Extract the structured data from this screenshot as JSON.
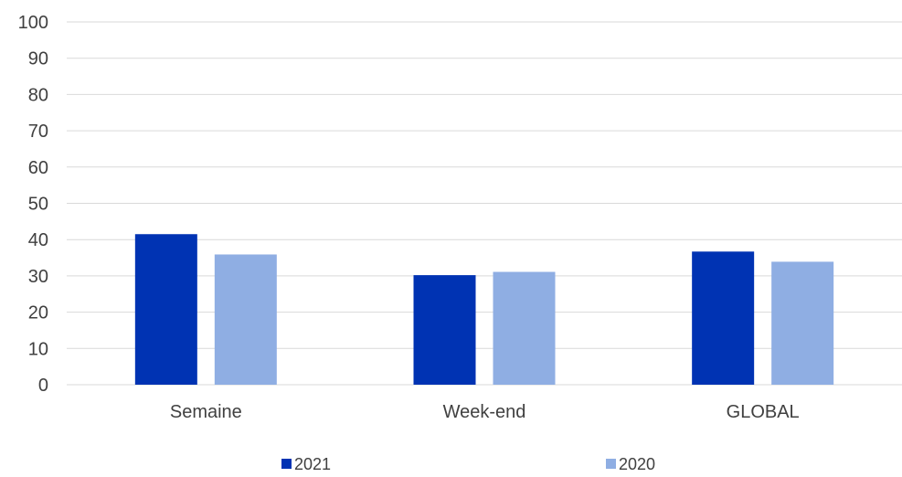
{
  "chart_data": {
    "type": "bar",
    "categories": [
      "Semaine",
      "Week-end",
      "GLOBAL"
    ],
    "series": [
      {
        "name": "2021",
        "values": [
          41.5,
          30.2,
          36.7
        ],
        "color": "#0033b3"
      },
      {
        "name": "2020",
        "values": [
          35.9,
          31.1,
          33.9
        ],
        "color": "#8faee3"
      }
    ],
    "ylim": [
      0,
      100
    ],
    "yticks": [
      0,
      10,
      20,
      30,
      40,
      50,
      60,
      70,
      80,
      90,
      100
    ],
    "grid": true,
    "legend_position": "bottom",
    "title": "",
    "xlabel": "",
    "ylabel": ""
  },
  "colors": {
    "gridline": "#d9d9d9",
    "axis_text": "#404040"
  }
}
